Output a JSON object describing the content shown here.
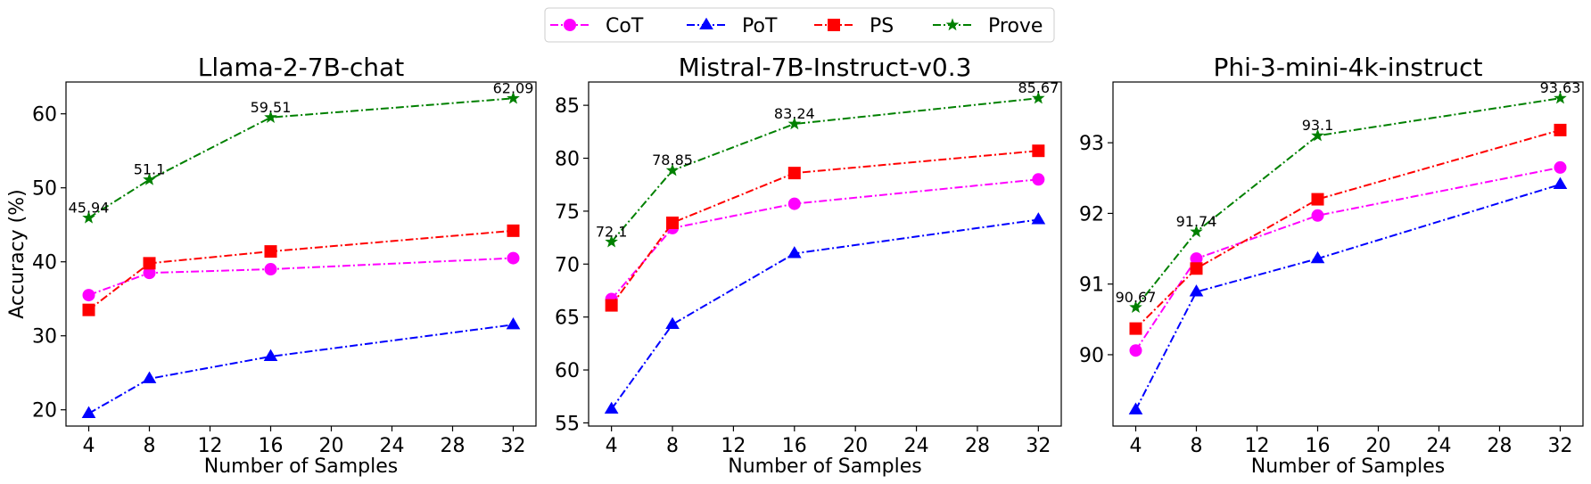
{
  "legend": {
    "items": [
      {
        "name": "CoT",
        "color": "#ff00ff",
        "marker": "circle"
      },
      {
        "name": "PoT",
        "color": "#0000ff",
        "marker": "triangle"
      },
      {
        "name": "PS",
        "color": "#ff0000",
        "marker": "square"
      },
      {
        "name": "Prove",
        "color": "#008000",
        "marker": "star"
      }
    ],
    "placement": "top-center"
  },
  "chart_data": [
    {
      "type": "line",
      "title": "Llama-2-7B-chat",
      "xlabel": "Number of Samples",
      "ylabel": "Accuracy (%)",
      "x": [
        4,
        8,
        16,
        32
      ],
      "xticks": [
        "4",
        "8",
        "12",
        "16",
        "20",
        "24",
        "28",
        "32"
      ],
      "yticks": [
        "20",
        "30",
        "40",
        "50",
        "60"
      ],
      "xlim": [
        2.5,
        33.5
      ],
      "ylim": [
        17.8,
        64.3
      ],
      "grid": false,
      "series": [
        {
          "name": "CoT",
          "values": [
            35.5,
            38.5,
            39.0,
            40.5
          ]
        },
        {
          "name": "PoT",
          "values": [
            19.5,
            24.2,
            27.2,
            31.5
          ]
        },
        {
          "name": "PS",
          "values": [
            33.5,
            39.8,
            41.4,
            44.2
          ]
        },
        {
          "name": "Prove",
          "values": [
            45.94,
            51.1,
            59.51,
            62.09
          ]
        }
      ],
      "annotations": [
        "45.94",
        "51.1",
        "59.51",
        "62.09"
      ]
    },
    {
      "type": "line",
      "title": "Mistral-7B-Instruct-v0.3",
      "xlabel": "Number of Samples",
      "ylabel": "",
      "x": [
        4,
        8,
        16,
        32
      ],
      "xticks": [
        "4",
        "8",
        "12",
        "16",
        "20",
        "24",
        "28",
        "32"
      ],
      "yticks": [
        "55",
        "60",
        "65",
        "70",
        "75",
        "80",
        "85"
      ],
      "xlim": [
        2.5,
        33.5
      ],
      "ylim": [
        54.7,
        87.2
      ],
      "grid": false,
      "series": [
        {
          "name": "CoT",
          "values": [
            66.7,
            73.4,
            75.7,
            78.0
          ]
        },
        {
          "name": "PoT",
          "values": [
            56.3,
            64.3,
            71.0,
            74.2
          ]
        },
        {
          "name": "PS",
          "values": [
            66.1,
            73.9,
            78.6,
            80.7
          ]
        },
        {
          "name": "Prove",
          "values": [
            72.1,
            78.85,
            83.24,
            85.67
          ]
        }
      ],
      "annotations": [
        "72.1",
        "78.85",
        "83.24",
        "85.67"
      ]
    },
    {
      "type": "line",
      "title": "Phi-3-mini-4k-instruct",
      "xlabel": "Number of Samples",
      "ylabel": "",
      "x": [
        4,
        8,
        16,
        32
      ],
      "xticks": [
        "4",
        "8",
        "12",
        "16",
        "20",
        "24",
        "28",
        "32"
      ],
      "yticks": [
        "90",
        "91",
        "92",
        "93"
      ],
      "xlim": [
        2.5,
        33.5
      ],
      "ylim": [
        88.99,
        93.86
      ],
      "grid": false,
      "series": [
        {
          "name": "CoT",
          "values": [
            90.06,
            91.36,
            91.97,
            92.65
          ]
        },
        {
          "name": "PoT",
          "values": [
            89.22,
            90.89,
            91.36,
            92.41
          ]
        },
        {
          "name": "PS",
          "values": [
            90.37,
            91.22,
            92.2,
            93.18
          ]
        },
        {
          "name": "Prove",
          "values": [
            90.67,
            91.74,
            93.1,
            93.63
          ]
        }
      ],
      "annotations": [
        "90.67",
        "91.74",
        "93.1",
        "93.63"
      ]
    }
  ]
}
